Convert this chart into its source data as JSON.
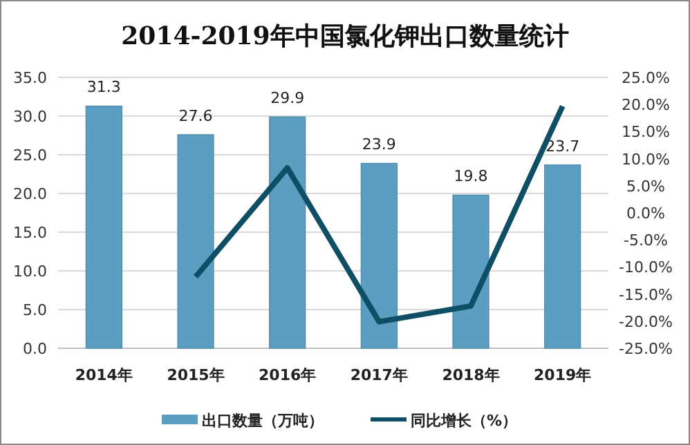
{
  "chart_data": {
    "type": "bar",
    "title": "2014-2019年中国氯化钾出口数量统计",
    "categories": [
      "2014年",
      "2015年",
      "2016年",
      "2017年",
      "2018年",
      "2019年"
    ],
    "series": [
      {
        "name": "出口数量（万吨）",
        "color": "#5b9ec2",
        "values": [
          31.3,
          27.6,
          29.9,
          23.9,
          19.8,
          23.7
        ],
        "value_labels": [
          "31.3",
          "27.6",
          "29.9",
          "23.9",
          "19.8",
          "23.7"
        ]
      },
      {
        "name": "同比增长（%）",
        "type": "line",
        "axis": "y2",
        "color": "#0e4f66",
        "values": [
          null,
          -11.8,
          8.3,
          -20.1,
          -17.2,
          19.7
        ]
      }
    ],
    "ylim": [
      0,
      35
    ],
    "yticks": [
      {
        "value": 0,
        "label": "0.0"
      },
      {
        "value": 5,
        "label": "5.0"
      },
      {
        "value": 10,
        "label": "10.0"
      },
      {
        "value": 15,
        "label": "15.0"
      },
      {
        "value": 20,
        "label": "20.0"
      },
      {
        "value": 25,
        "label": "25.0"
      },
      {
        "value": 30,
        "label": "30.0"
      },
      {
        "value": 35,
        "label": "35.0"
      }
    ],
    "y2lim": [
      -25,
      25
    ],
    "y2ticks": [
      {
        "value": -25,
        "label": "-25.0%"
      },
      {
        "value": -20,
        "label": "-20.0%"
      },
      {
        "value": -15,
        "label": "-15.0%"
      },
      {
        "value": -10,
        "label": "-10.0%"
      },
      {
        "value": -5,
        "label": "-5.0%"
      },
      {
        "value": 0,
        "label": "0.0%"
      },
      {
        "value": 5,
        "label": "5.0%"
      },
      {
        "value": 10,
        "label": "10.0%"
      },
      {
        "value": 15,
        "label": "15.0%"
      },
      {
        "value": 20,
        "label": "20.0%"
      },
      {
        "value": 25,
        "label": "25.0%"
      }
    ],
    "grid": "y",
    "legend": "bottom",
    "marker": "none"
  }
}
